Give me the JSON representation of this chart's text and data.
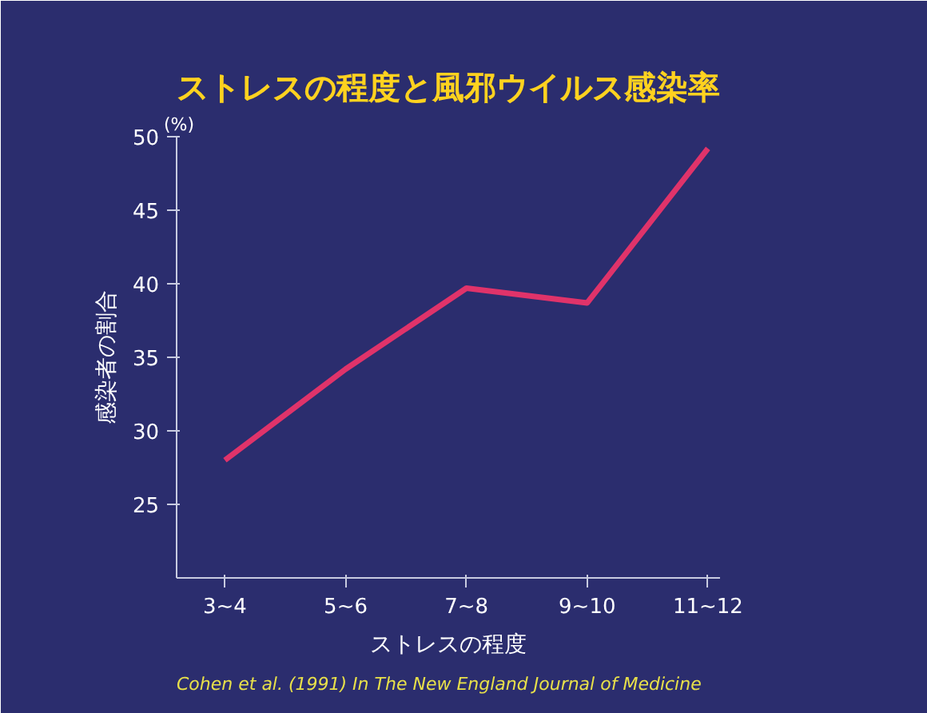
{
  "chart_data": {
    "type": "line",
    "title": "ストレスの程度と風邪ウイルス感染率",
    "xlabel": "ストレスの程度",
    "ylabel": "感染者の割合",
    "categories": [
      "3~4",
      "5~6",
      "7~8",
      "9~10",
      "11~12"
    ],
    "series": [
      {
        "color": "#e0336a",
        "values": [
          28,
          34.2,
          39.7,
          38.7,
          49.2
        ]
      }
    ],
    "ylim": [
      20,
      50
    ],
    "yticks": [
      25,
      30,
      35,
      40,
      45,
      50
    ],
    "grid": false,
    "marker": "none",
    "line_style": "solid",
    "annotations": [
      "(%)",
      "Cohen et al. (1991) In The New England Journal of Medicine"
    ]
  }
}
